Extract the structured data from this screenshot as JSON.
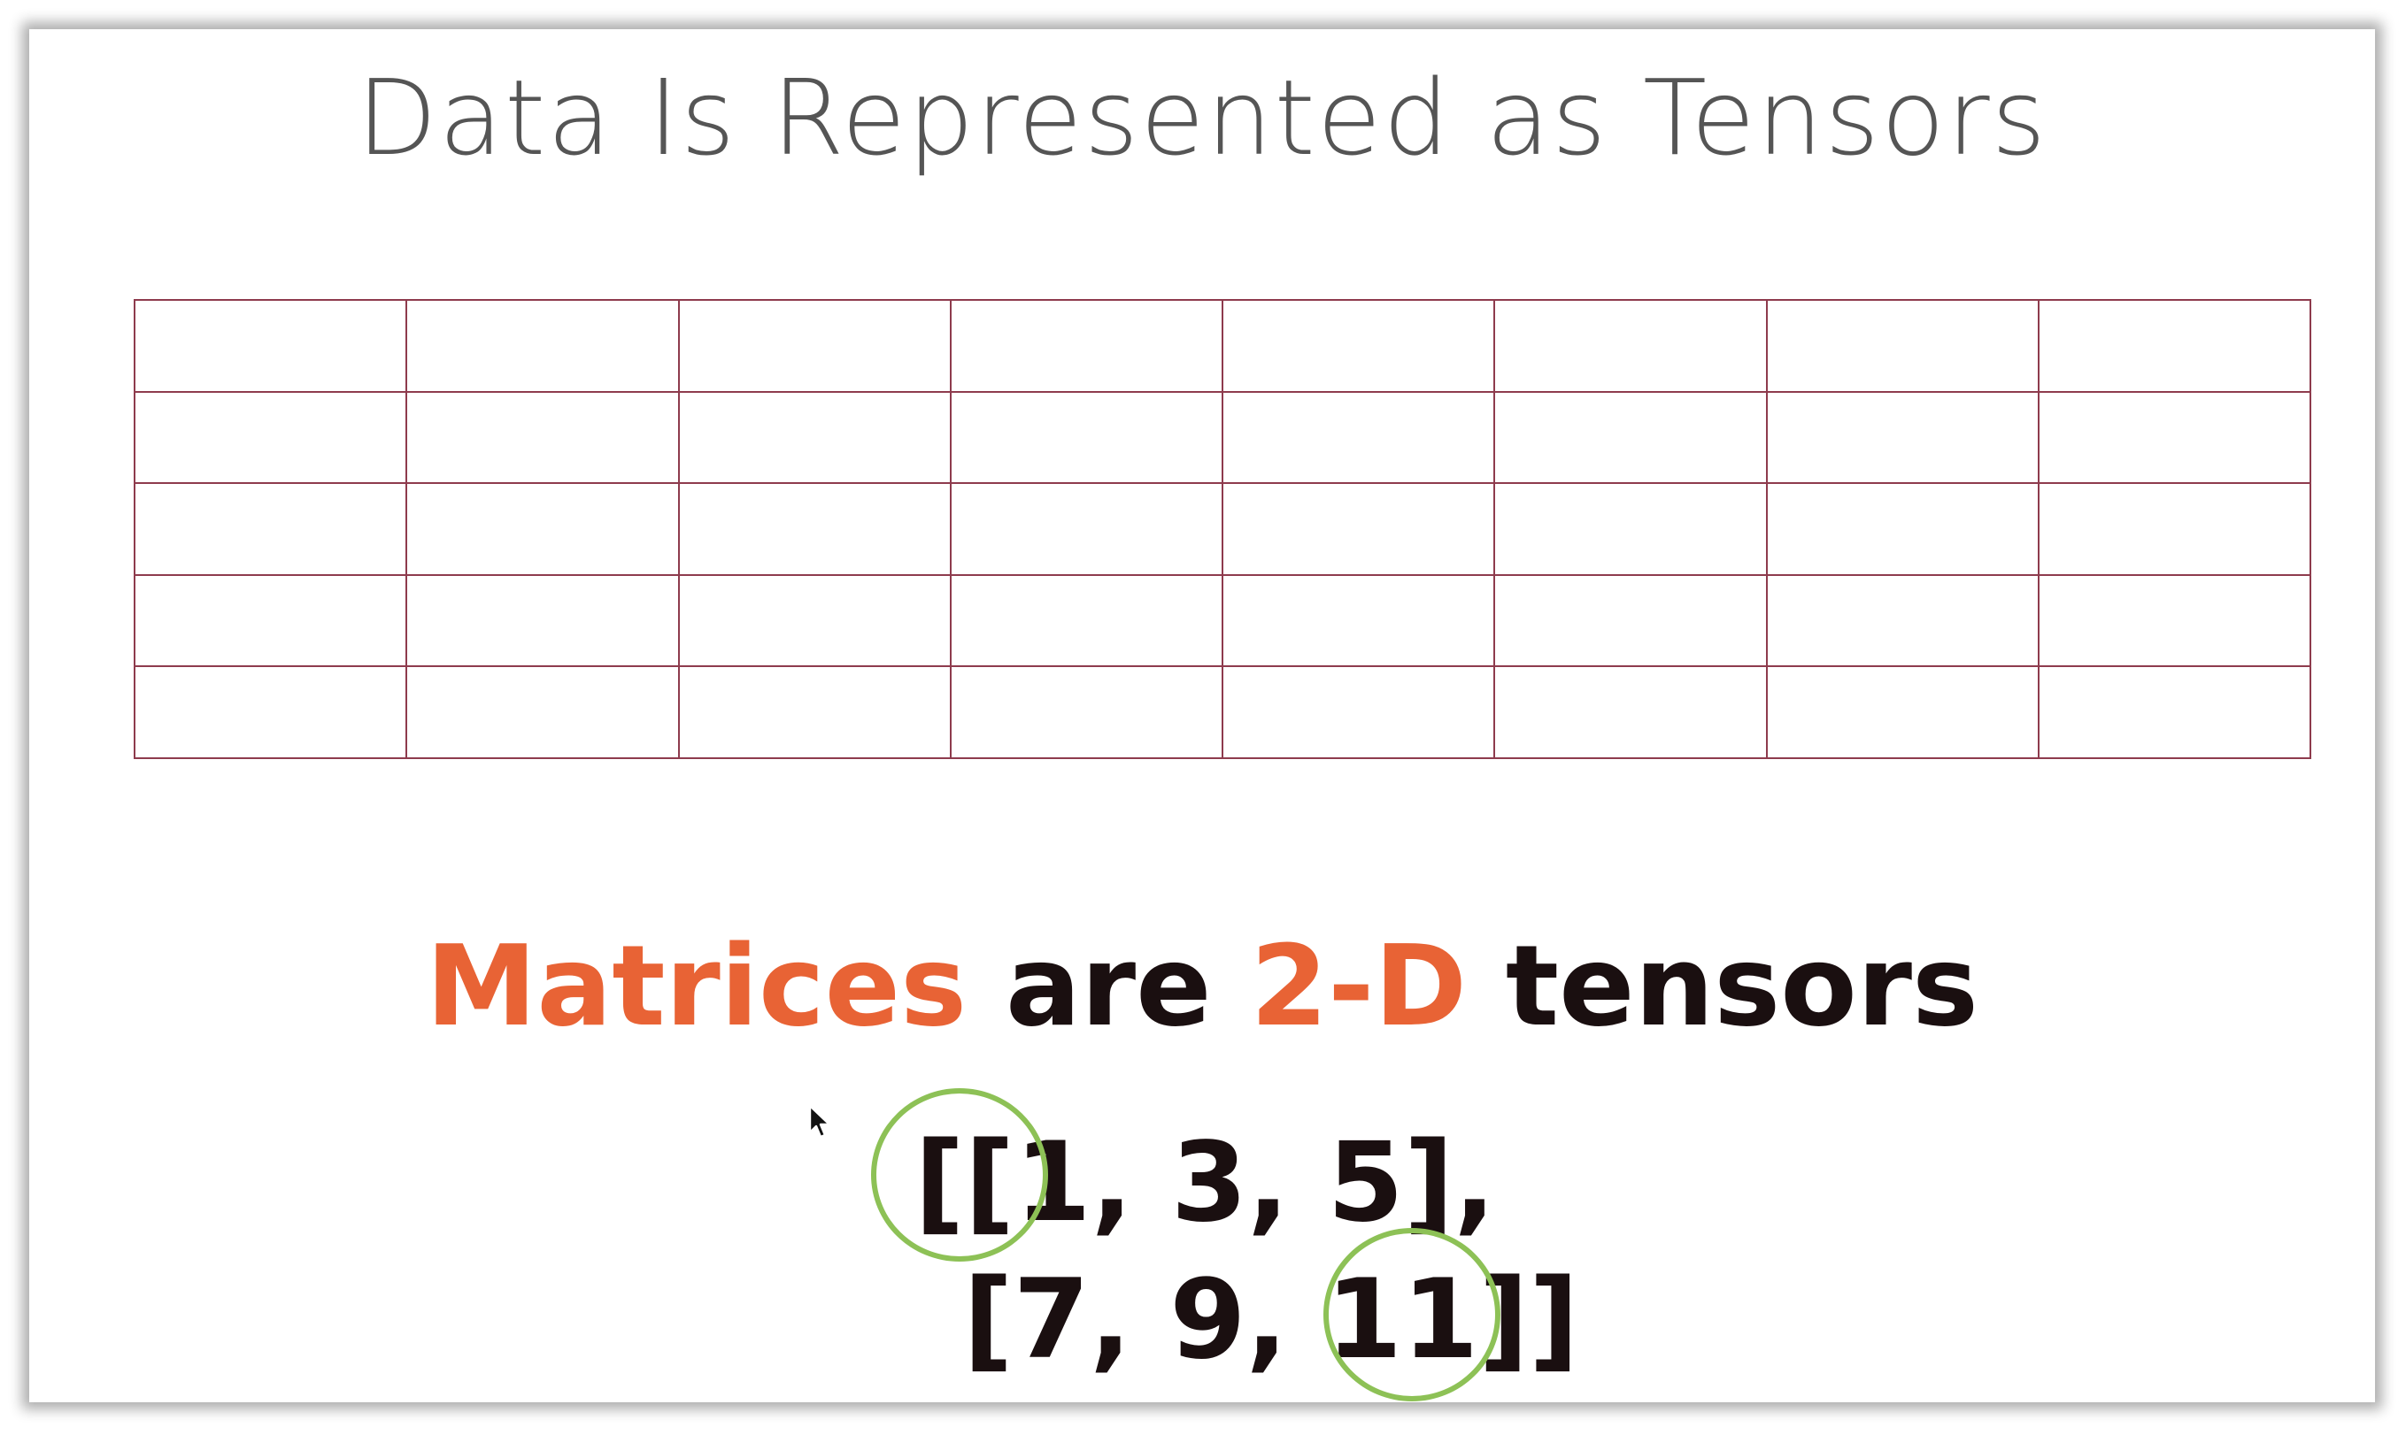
{
  "slide": {
    "title": "Data Is Represented as Tensors",
    "grid": {
      "rows": 5,
      "columns": 8,
      "line_color": "#8e3b4d"
    },
    "headline": {
      "word_1": "Matrices",
      "word_2": " are ",
      "word_3": "2-D",
      "word_4": " tensors",
      "accent_color": "#e86335",
      "text_color": "#1a0f10"
    },
    "code": {
      "line_1": "[[1, 3, 5],",
      "line_2": "[7, 9, 11]]"
    },
    "highlight_color": "#8dc156"
  },
  "icons": {
    "cursor": "mouse-pointer-icon"
  }
}
